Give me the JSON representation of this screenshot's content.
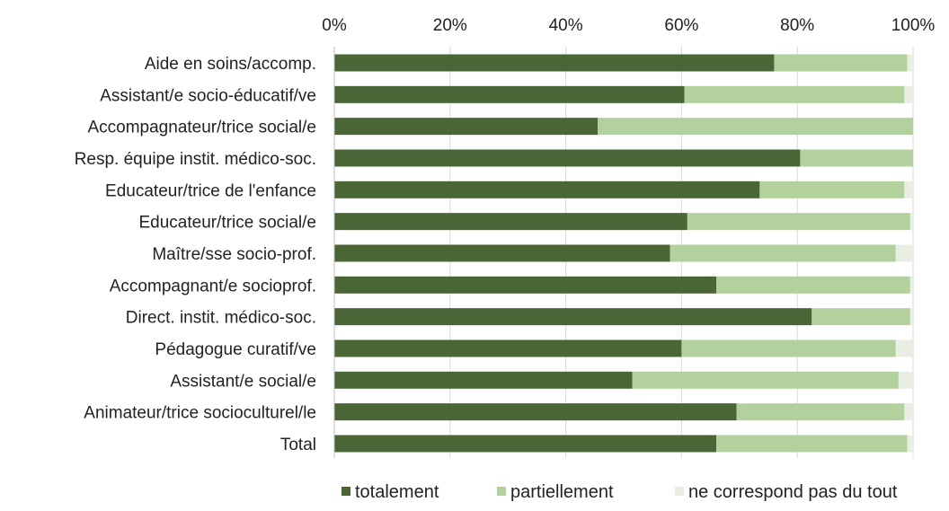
{
  "chart_data": {
    "type": "bar",
    "orientation": "horizontal",
    "stacked": "100%",
    "x_ticks": [
      "0%",
      "20%",
      "40%",
      "60%",
      "80%",
      "100%"
    ],
    "x_axis_position": "top",
    "xlim": [
      0,
      100
    ],
    "grid": true,
    "legend_position": "bottom",
    "categories": [
      "Aide en soins/accomp.",
      "Assistant/e socio-éducatif/ve",
      "Accompagnateur/trice social/e",
      "Resp. équipe instit. médico-soc.",
      "Educateur/trice de l'enfance",
      "Educateur/trice social/e",
      "Maître/sse socio-prof.",
      "Accompagnant/e socioprof.",
      "Direct. instit. médico-soc.",
      "Pédagogue curatif/ve",
      "Assistant/e social/e",
      "Animateur/trice socioculturel/le",
      "Total"
    ],
    "series": [
      {
        "name": "totalement",
        "color": "#4a6536",
        "values": [
          76,
          60.5,
          45.5,
          80.5,
          73.5,
          61,
          58,
          66,
          82.5,
          60,
          51.5,
          69.5,
          66
        ]
      },
      {
        "name": "partiellement",
        "color": "#b3d19d",
        "values": [
          23,
          38,
          54.5,
          19.5,
          25,
          38.5,
          39,
          33.5,
          17,
          37,
          46,
          29,
          33
        ]
      },
      {
        "name": "ne correspond pas du tout",
        "color": "#e8eee3",
        "values": [
          1,
          1.5,
          0,
          0,
          1.5,
          0.5,
          3,
          0.5,
          0.5,
          3,
          2.5,
          1.5,
          1
        ]
      }
    ]
  }
}
